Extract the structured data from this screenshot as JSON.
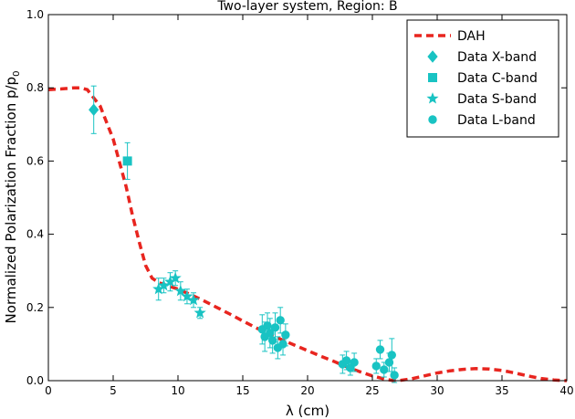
{
  "chart_data": {
    "type": "scatter",
    "title": "Two-layer system, Region: B",
    "xlabel": "λ (cm)",
    "ylabel": "Normalized Polarization Fraction p/p",
    "ylabel_sub": "0",
    "xlim": [
      0,
      40
    ],
    "ylim": [
      0,
      1.0
    ],
    "x_ticks": [
      0,
      5,
      10,
      15,
      20,
      25,
      30,
      35,
      40
    ],
    "y_ticks": [
      0.0,
      0.2,
      0.4,
      0.6,
      0.8,
      1.0
    ],
    "grid": false,
    "legend_position": "top-right",
    "colors": {
      "model": "#e8251f",
      "data": "#19c3c3"
    },
    "model": {
      "name": "DAH",
      "x": [
        0,
        1,
        2,
        2.5,
        3,
        4,
        5,
        6,
        6.5,
        7,
        7.5,
        8,
        8.5,
        9,
        10,
        11,
        12,
        13,
        14,
        15,
        16,
        17,
        18,
        19,
        20,
        21,
        22,
        23,
        24,
        25,
        26,
        26.5,
        27,
        28,
        29,
        30,
        31,
        32,
        33,
        34,
        35,
        36,
        37,
        38,
        39,
        40
      ],
      "y": [
        0.795,
        0.797,
        0.8,
        0.8,
        0.795,
        0.75,
        0.66,
        0.53,
        0.45,
        0.38,
        0.315,
        0.28,
        0.268,
        0.262,
        0.25,
        0.235,
        0.218,
        0.2,
        0.182,
        0.163,
        0.145,
        0.128,
        0.112,
        0.097,
        0.082,
        0.067,
        0.053,
        0.038,
        0.025,
        0.013,
        0.004,
        0.001,
        0.0,
        0.005,
        0.013,
        0.021,
        0.027,
        0.031,
        0.033,
        0.032,
        0.028,
        0.021,
        0.013,
        0.006,
        0.002,
        0.0
      ]
    },
    "series": [
      {
        "name": "Data X-band",
        "marker": "diamond",
        "points": [
          {
            "x": 3.5,
            "y": 0.74,
            "err": 0.065
          }
        ]
      },
      {
        "name": "Data C-band",
        "marker": "square",
        "points": [
          {
            "x": 6.1,
            "y": 0.6,
            "err": 0.05
          }
        ]
      },
      {
        "name": "Data S-band",
        "marker": "star",
        "points": [
          {
            "x": 8.5,
            "y": 0.25,
            "err": 0.03
          },
          {
            "x": 8.9,
            "y": 0.26,
            "err": 0.02
          },
          {
            "x": 9.4,
            "y": 0.27,
            "err": 0.025
          },
          {
            "x": 9.8,
            "y": 0.28,
            "err": 0.02
          },
          {
            "x": 10.2,
            "y": 0.245,
            "err": 0.025
          },
          {
            "x": 10.7,
            "y": 0.23,
            "err": 0.02
          },
          {
            "x": 11.2,
            "y": 0.22,
            "err": 0.02
          },
          {
            "x": 11.7,
            "y": 0.185,
            "err": 0.015
          }
        ]
      },
      {
        "name": "Data L-band",
        "marker": "circle",
        "points": [
          {
            "x": 16.5,
            "y": 0.14,
            "err": 0.04
          },
          {
            "x": 16.7,
            "y": 0.12,
            "err": 0.04
          },
          {
            "x": 16.9,
            "y": 0.15,
            "err": 0.035
          },
          {
            "x": 17.1,
            "y": 0.13,
            "err": 0.04
          },
          {
            "x": 17.3,
            "y": 0.11,
            "err": 0.035
          },
          {
            "x": 17.5,
            "y": 0.145,
            "err": 0.04
          },
          {
            "x": 17.7,
            "y": 0.09,
            "err": 0.03
          },
          {
            "x": 17.9,
            "y": 0.165,
            "err": 0.035
          },
          {
            "x": 18.1,
            "y": 0.1,
            "err": 0.03
          },
          {
            "x": 18.3,
            "y": 0.125,
            "err": 0.03
          },
          {
            "x": 22.7,
            "y": 0.045,
            "err": 0.025
          },
          {
            "x": 23.0,
            "y": 0.055,
            "err": 0.025
          },
          {
            "x": 23.3,
            "y": 0.035,
            "err": 0.02
          },
          {
            "x": 23.6,
            "y": 0.05,
            "err": 0.025
          },
          {
            "x": 25.3,
            "y": 0.04,
            "err": 0.02
          },
          {
            "x": 25.6,
            "y": 0.085,
            "err": 0.025
          },
          {
            "x": 25.9,
            "y": 0.03,
            "err": 0.02
          },
          {
            "x": 26.3,
            "y": 0.05,
            "err": 0.025
          },
          {
            "x": 26.5,
            "y": 0.07,
            "err": 0.045
          },
          {
            "x": 26.7,
            "y": 0.015,
            "err": 0.02
          }
        ]
      }
    ]
  }
}
